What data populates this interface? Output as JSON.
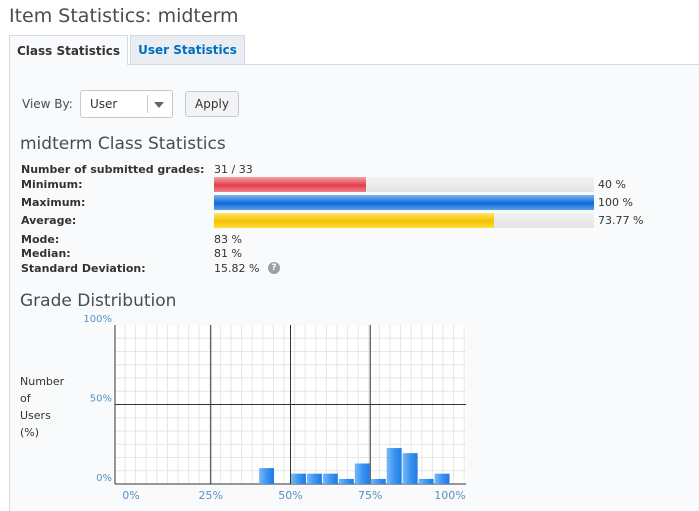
{
  "page": {
    "title": "Item Statistics: midterm"
  },
  "tabs": [
    {
      "label": "Class Statistics",
      "active": true
    },
    {
      "label": "User Statistics",
      "active": false
    }
  ],
  "view_by": {
    "label": "View By:",
    "selected": "User",
    "apply_label": "Apply"
  },
  "class_stats": {
    "title": "midterm Class Statistics",
    "submitted": {
      "label": "Number of submitted grades:",
      "value": "31 / 33"
    },
    "minimum": {
      "label": "Minimum:",
      "value": "40 %",
      "fraction": 0.4,
      "color": "#e0404b"
    },
    "maximum": {
      "label": "Maximum:",
      "value": "100 %",
      "fraction": 1.0,
      "color": "#0e6ad8"
    },
    "average": {
      "label": "Average:",
      "value": "73.77 %",
      "fraction": 0.7377,
      "color": "#f2c200"
    },
    "mode": {
      "label": "Mode:",
      "value": "83 %"
    },
    "median": {
      "label": "Median:",
      "value": "81 %"
    },
    "std_dev": {
      "label": "Standard Deviation:",
      "value": "15.82 %",
      "help_icon": "question-circle-icon"
    }
  },
  "distribution": {
    "title": "Grade Distribution",
    "ylabel_lines": [
      "Number",
      "of",
      "Users",
      "(%)"
    ]
  },
  "chart_data": {
    "type": "bar",
    "ylabel": "Number of Users (%)",
    "x_ticks": [
      "0%",
      "25%",
      "50%",
      "75%",
      "100%"
    ],
    "y_ticks": [
      "0%",
      "50%",
      "100%"
    ],
    "xlim": [
      0,
      100
    ],
    "ylim": [
      0,
      100
    ],
    "bar_color": "#3d95f0",
    "bins": [
      {
        "start": 40,
        "end": 45,
        "value": 10
      },
      {
        "start": 50,
        "end": 55,
        "value": 6.5
      },
      {
        "start": 55,
        "end": 60,
        "value": 6.5
      },
      {
        "start": 60,
        "end": 65,
        "value": 6.5
      },
      {
        "start": 65,
        "end": 70,
        "value": 3.2
      },
      {
        "start": 70,
        "end": 75,
        "value": 12.9
      },
      {
        "start": 75,
        "end": 80,
        "value": 3.2
      },
      {
        "start": 80,
        "end": 85,
        "value": 22.6
      },
      {
        "start": 85,
        "end": 90,
        "value": 19.4
      },
      {
        "start": 90,
        "end": 95,
        "value": 3.2
      },
      {
        "start": 95,
        "end": 100,
        "value": 6.5
      }
    ]
  }
}
